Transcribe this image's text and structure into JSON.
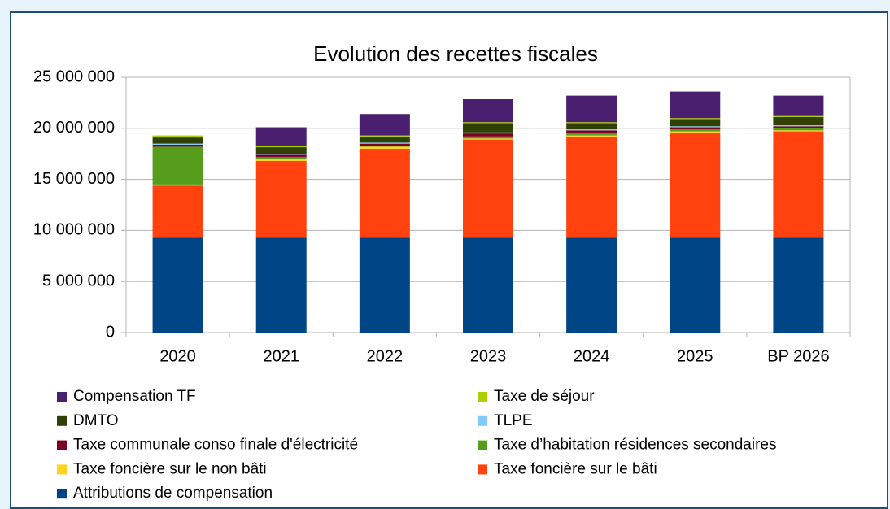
{
  "chart_data": {
    "type": "bar",
    "stacked": true,
    "title": "Evolution des recettes fiscales",
    "categories": [
      "2020",
      "2021",
      "2022",
      "2023",
      "2024",
      "2025",
      "BP 2026"
    ],
    "series": [
      {
        "name": "Attributions de compensation",
        "color": "#004586",
        "values": [
          9300000,
          9300000,
          9300000,
          9300000,
          9300000,
          9300000,
          9300000
        ]
      },
      {
        "name": "Taxe foncière sur le bâti",
        "color": "#ff420e",
        "values": [
          5100000,
          7500000,
          8700000,
          9600000,
          9900000,
          10300000,
          10400000
        ]
      },
      {
        "name": "Taxe foncière sur le non bâti",
        "color": "#ffd320",
        "values": [
          100000,
          200000,
          200000,
          100000,
          100000,
          100000,
          100000
        ]
      },
      {
        "name": "Taxe d’habitation résidences secondaires",
        "color": "#579d1c",
        "values": [
          3700000,
          200000,
          100000,
          200000,
          200000,
          200000,
          200000
        ]
      },
      {
        "name": "Taxe communale conso finale d'électricité",
        "color": "#7e0021",
        "values": [
          200000,
          200000,
          200000,
          300000,
          300000,
          200000,
          200000
        ]
      },
      {
        "name": "TLPE",
        "color": "#83caff",
        "values": [
          100000,
          100000,
          100000,
          100000,
          100000,
          100000,
          100000
        ]
      },
      {
        "name": "DMTO",
        "color": "#314004",
        "values": [
          600000,
          650000,
          600000,
          900000,
          600000,
          700000,
          800000
        ]
      },
      {
        "name": "Taxe de séjour",
        "color": "#aecf00",
        "values": [
          200000,
          150000,
          100000,
          100000,
          100000,
          100000,
          100000
        ]
      },
      {
        "name": "Compensation TF",
        "color": "#4b1f6f",
        "values": [
          0,
          1800000,
          2100000,
          2250000,
          2600000,
          2600000,
          2000000
        ]
      }
    ],
    "ylim": [
      0,
      25000000
    ],
    "yticks": [
      {
        "value": 0,
        "label": "0"
      },
      {
        "value": 5000000,
        "label": "5 000 000"
      },
      {
        "value": 10000000,
        "label": "10 000 000"
      },
      {
        "value": 15000000,
        "label": "15 000 000"
      },
      {
        "value": 20000000,
        "label": "20 000 000"
      },
      {
        "value": 25000000,
        "label": "25 000 000"
      }
    ],
    "grid": true
  }
}
